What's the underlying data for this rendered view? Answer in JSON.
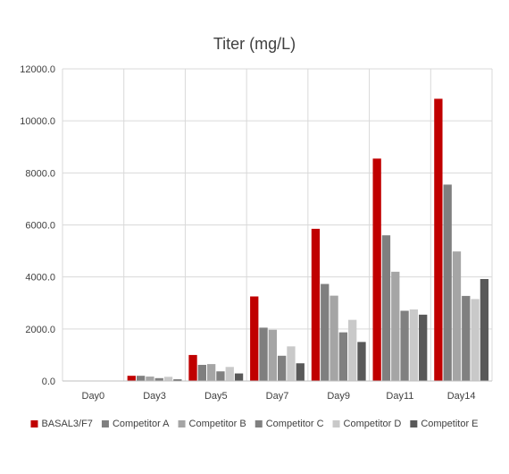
{
  "chart_data": {
    "type": "bar",
    "title": "Titer (mg/L)",
    "xlabel": "",
    "ylabel": "",
    "categories": [
      "Day0",
      "Day3",
      "Day5",
      "Day7",
      "Day9",
      "Day11",
      "Day14"
    ],
    "ylim": [
      0,
      12000
    ],
    "yticks": [
      "0.0",
      "2000.0",
      "4000.0",
      "6000.0",
      "8000.0",
      "10000.0",
      "12000.0"
    ],
    "grid": true,
    "legend_position": "bottom",
    "series": [
      {
        "name": "BASAL3/F7",
        "color": "#c00000",
        "values": [
          0,
          200,
          1000,
          3250,
          5850,
          8550,
          10850
        ]
      },
      {
        "name": "Competitor A",
        "color": "#7f7f7f",
        "values": [
          0,
          200,
          620,
          2050,
          3730,
          5600,
          7550
        ]
      },
      {
        "name": "Competitor B",
        "color": "#a5a5a5",
        "values": [
          0,
          170,
          650,
          1970,
          3280,
          4200,
          4980
        ]
      },
      {
        "name": "Competitor C",
        "color": "#808080",
        "values": [
          0,
          110,
          370,
          970,
          1870,
          2700,
          3270
        ]
      },
      {
        "name": "Competitor D",
        "color": "#c9c9c9",
        "values": [
          0,
          160,
          540,
          1330,
          2350,
          2750,
          3150
        ]
      },
      {
        "name": "Competitor E",
        "color": "#595959",
        "values": [
          0,
          60,
          290,
          680,
          1500,
          2550,
          3920
        ]
      }
    ]
  }
}
